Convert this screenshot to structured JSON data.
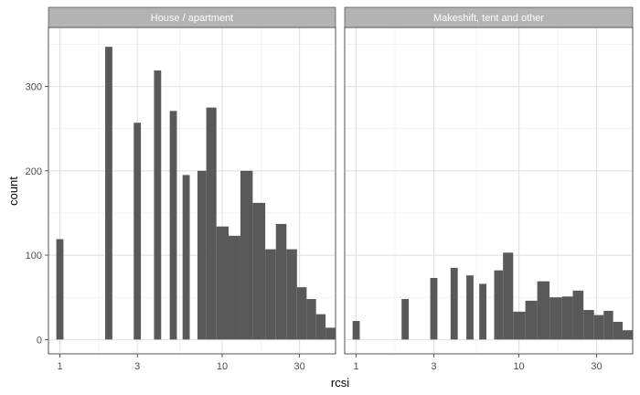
{
  "chart_data": {
    "type": "bar",
    "xlabel": "rcsi",
    "ylabel": "count",
    "x_scale": "log10",
    "xlim": [
      0.85,
      50
    ],
    "ylim": [
      -17,
      370
    ],
    "x_ticks": [
      1,
      3,
      10,
      30
    ],
    "x_tick_labels": [
      "1",
      "3",
      "10",
      "30"
    ],
    "y_ticks": [
      0,
      100,
      200,
      300
    ],
    "y_tick_labels": [
      "0",
      "100",
      "200",
      "300"
    ],
    "grid": true,
    "legend": "none",
    "bar_color": "#595959",
    "panel_background": "#ffffff",
    "gridline_color": "#ebebeb",
    "strip_color": "#b3b3b3",
    "panels": [
      {
        "name": "House / apartment",
        "bins": [
          {
            "x": 1.0,
            "count": 119
          },
          {
            "x": 2.0,
            "count": 347
          },
          {
            "x": 3.0,
            "count": 257
          },
          {
            "x": 4.0,
            "count": 319
          },
          {
            "x": 5.0,
            "count": 271
          },
          {
            "x": 6.0,
            "count": 195
          },
          {
            "x": 7.5,
            "count": 200
          },
          {
            "x": 8.5,
            "count": 275
          },
          {
            "x": 10.0,
            "count": 134
          },
          {
            "x": 12.0,
            "count": 123
          },
          {
            "x": 14.0,
            "count": 200
          },
          {
            "x": 17.0,
            "count": 162
          },
          {
            "x": 20.0,
            "count": 107
          },
          {
            "x": 23.0,
            "count": 137
          },
          {
            "x": 27.0,
            "count": 107
          },
          {
            "x": 31.0,
            "count": 62
          },
          {
            "x": 35.5,
            "count": 48
          },
          {
            "x": 40.5,
            "count": 30
          },
          {
            "x": 46.5,
            "count": 14
          }
        ]
      },
      {
        "name": "Makeshift, tent and other",
        "bins": [
          {
            "x": 1.0,
            "count": 22
          },
          {
            "x": 2.0,
            "count": 48
          },
          {
            "x": 3.0,
            "count": 73
          },
          {
            "x": 4.0,
            "count": 85
          },
          {
            "x": 5.0,
            "count": 76
          },
          {
            "x": 6.0,
            "count": 66
          },
          {
            "x": 7.5,
            "count": 82
          },
          {
            "x": 8.5,
            "count": 103
          },
          {
            "x": 10.0,
            "count": 33
          },
          {
            "x": 12.0,
            "count": 46
          },
          {
            "x": 14.0,
            "count": 69
          },
          {
            "x": 17.0,
            "count": 50
          },
          {
            "x": 20.0,
            "count": 51
          },
          {
            "x": 23.0,
            "count": 58
          },
          {
            "x": 27.0,
            "count": 35
          },
          {
            "x": 31.0,
            "count": 29
          },
          {
            "x": 35.5,
            "count": 34
          },
          {
            "x": 40.5,
            "count": 21
          },
          {
            "x": 46.5,
            "count": 11
          }
        ]
      }
    ]
  }
}
